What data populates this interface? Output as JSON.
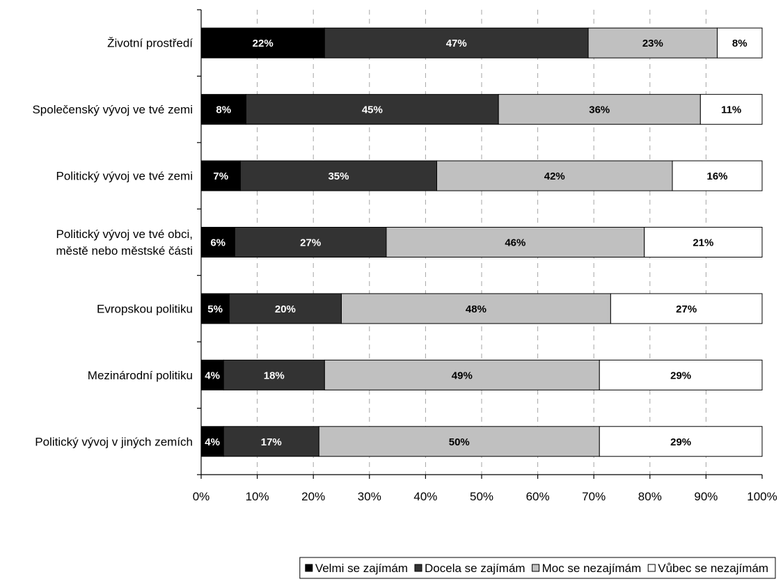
{
  "chart_data": {
    "type": "bar",
    "orientation": "horizontal",
    "stacked": true,
    "percent_stacked": true,
    "categories": [
      [
        "Životní prostředí"
      ],
      [
        "Společenský vývoj ve tvé zemi"
      ],
      [
        "Politický vývoj ve tvé zemi"
      ],
      [
        "Politický vývoj ve tvé obci,",
        "městě nebo městské části"
      ],
      [
        "Evropskou politiku"
      ],
      [
        "Mezinárodní politiku"
      ],
      [
        "Politický vývoj v jiných zemích"
      ]
    ],
    "series": [
      {
        "name": "Velmi se zajímám",
        "color": "#000000",
        "label_color": "#ffffff",
        "values": [
          22,
          8,
          7,
          6,
          5,
          4,
          4
        ]
      },
      {
        "name": "Docela se zajímám",
        "color": "#333333",
        "label_color": "#ffffff",
        "values": [
          47,
          45,
          35,
          27,
          20,
          18,
          17
        ]
      },
      {
        "name": "Moc se nezajímám",
        "color": "#c0c0c0",
        "label_color": "#000000",
        "values": [
          23,
          36,
          42,
          46,
          48,
          49,
          50
        ]
      },
      {
        "name": "Vůbec se nezajímám",
        "color": "#ffffff",
        "label_color": "#000000",
        "values": [
          8,
          11,
          16,
          21,
          27,
          29,
          29
        ]
      }
    ],
    "data_label_suffix": "%",
    "xlim": [
      0,
      100
    ],
    "xticks": [
      "0%",
      "10%",
      "20%",
      "30%",
      "40%",
      "50%",
      "60%",
      "70%",
      "80%",
      "90%",
      "100%"
    ],
    "grid": "vertical dashed",
    "legend_position": "bottom-right",
    "title": "",
    "xlabel": "",
    "ylabel": ""
  }
}
